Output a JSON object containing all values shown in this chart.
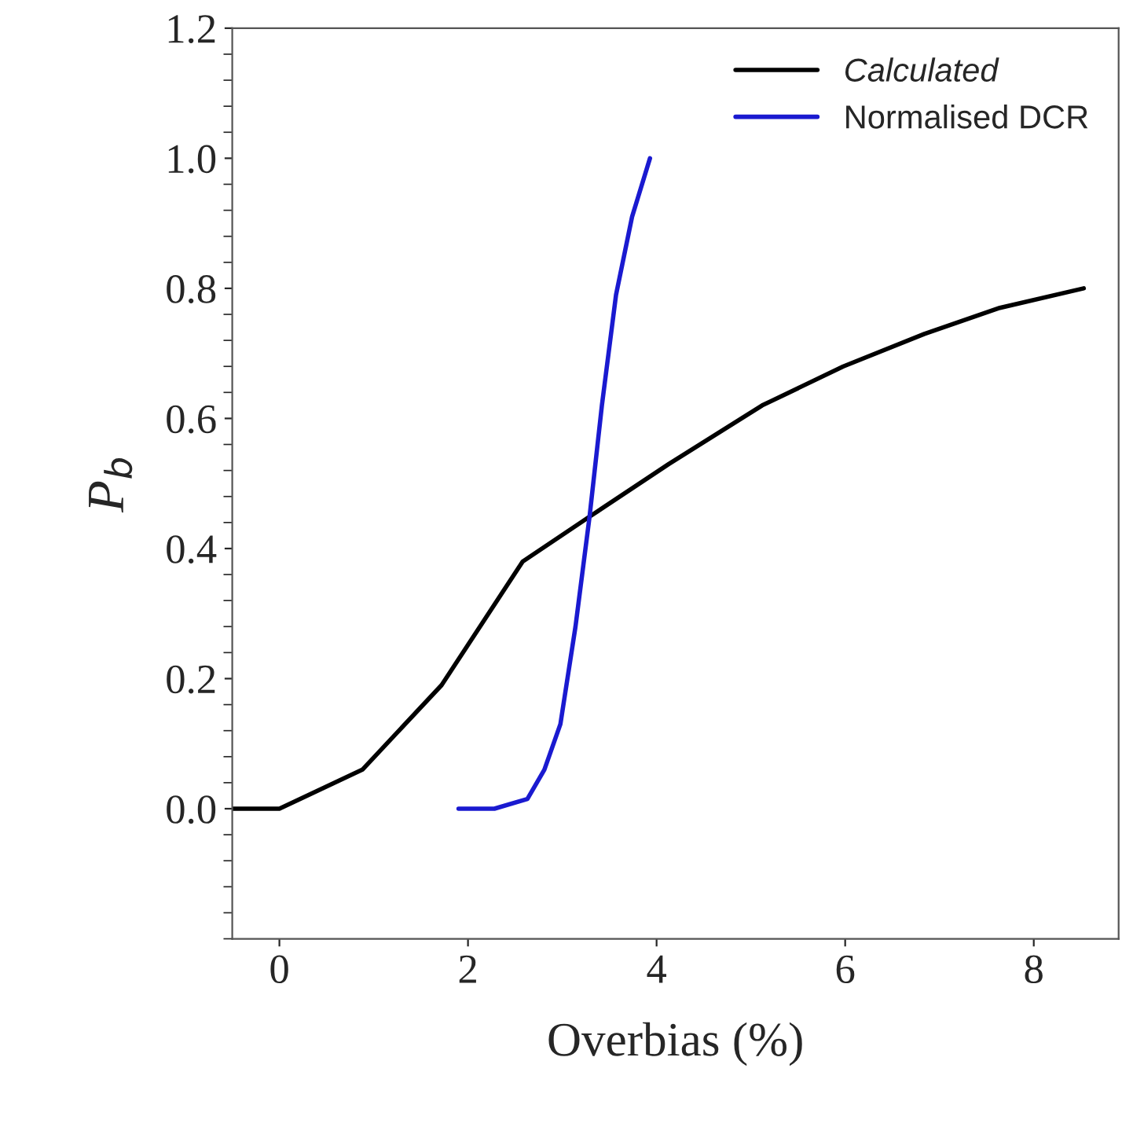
{
  "chart_data": {
    "type": "line",
    "xlabel": "Overbias (%)",
    "ylabel": "P$_{b}$",
    "series": [
      {
        "name": "Calculated",
        "color": "#000000",
        "x": [
          -0.5,
          0,
          0.88,
          1.72,
          2.58,
          3.3,
          4.13,
          5.12,
          5.98,
          6.84,
          7.64,
          8.53
        ],
        "values": [
          0,
          0,
          0.06,
          0.19,
          0.38,
          0.45,
          0.53,
          0.62,
          0.68,
          0.73,
          0.77,
          0.8
        ]
      },
      {
        "name": "Normalised DCR",
        "color": "#1a1ad0",
        "x": [
          1.9,
          2.28,
          2.63,
          2.81,
          2.98,
          3.14,
          3.29,
          3.42,
          3.57,
          3.74,
          3.93
        ],
        "values": [
          0,
          0,
          0.015,
          0.06,
          0.13,
          0.28,
          0.45,
          0.62,
          0.79,
          0.91,
          1.0
        ]
      }
    ],
    "xlim": [
      -0.5,
      8.9
    ],
    "ylim": [
      -0.2,
      1.2
    ],
    "xticks": [
      0,
      2,
      4,
      6,
      8
    ],
    "yticks": [
      {
        "value": 0,
        "label": "0.0"
      },
      0.2,
      0.4,
      0.6,
      0.8,
      {
        "value": 1,
        "label": "1.0"
      },
      1.2
    ],
    "legend": "top right",
    "grid": false,
    "marker": "none",
    "line_style": "solid"
  }
}
